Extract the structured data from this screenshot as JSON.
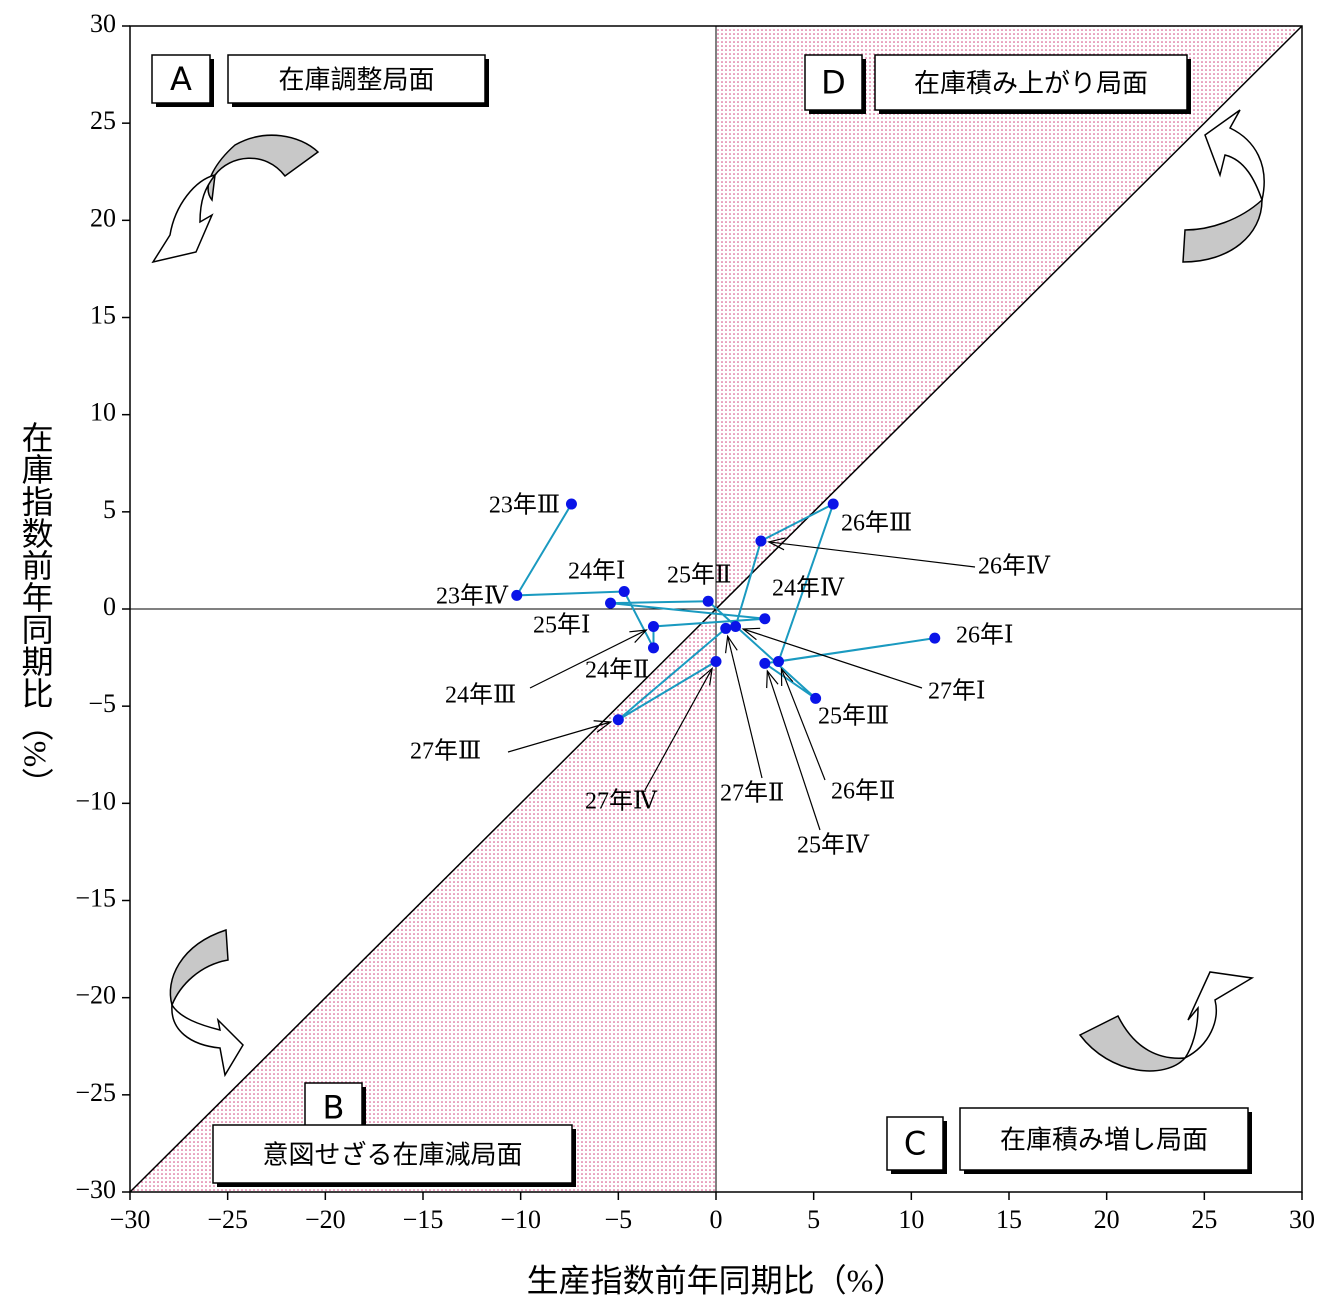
{
  "chart_data": {
    "type": "scatter-line",
    "x_label": "生産指数前年同期比（%）",
    "y_label": "在庫指数前年同期比（%）",
    "point_labels": [
      "23年Ⅲ",
      "23年Ⅳ",
      "24年Ⅰ",
      "24年Ⅱ",
      "24年Ⅲ",
      "24年Ⅳ",
      "25年Ⅰ",
      "25年Ⅱ",
      "25年Ⅲ",
      "25年Ⅳ",
      "26年Ⅰ",
      "26年Ⅱ",
      "26年Ⅲ",
      "26年Ⅳ",
      "27年Ⅰ",
      "27年Ⅱ",
      "27年Ⅲ",
      "27年Ⅳ"
    ],
    "x": [
      -7.4,
      -10.2,
      -4.7,
      -3.2,
      -3.2,
      2.5,
      -5.4,
      -0.4,
      5.1,
      2.5,
      11.2,
      3.2,
      6.0,
      2.3,
      1.0,
      0.5,
      -5.0,
      0.0
    ],
    "values": [
      5.4,
      0.7,
      0.9,
      -2.0,
      -0.9,
      -0.5,
      0.3,
      0.4,
      -4.6,
      -2.8,
      -1.5,
      -2.7,
      5.4,
      3.5,
      -0.9,
      -1.0,
      -5.7,
      -2.7
    ],
    "line_color": "#1a9ac0",
    "marker_color": "#0a14e8",
    "xlim": [
      -30,
      30
    ],
    "ylim": [
      -30,
      30
    ],
    "xticks": [
      {
        "value": -30,
        "label": "−30"
      },
      {
        "value": -25,
        "label": "−25"
      },
      {
        "value": -20,
        "label": "−20"
      },
      {
        "value": -15,
        "label": "−15"
      },
      {
        "value": -10,
        "label": "−10"
      },
      {
        "value": -5,
        "label": "−5"
      },
      0,
      5,
      10,
      15,
      20,
      25,
      30
    ],
    "yticks": [
      {
        "value": -30,
        "label": "−30"
      },
      {
        "value": -25,
        "label": "−25"
      },
      {
        "value": -20,
        "label": "−20"
      },
      {
        "value": -15,
        "label": "−15"
      },
      {
        "value": -10,
        "label": "−10"
      },
      {
        "value": -5,
        "label": "−5"
      },
      {
        "value": 0,
        "label": "0"
      },
      5,
      10,
      15,
      20,
      25,
      30
    ],
    "quadrants": [
      {
        "letter": "A",
        "label": "在庫調整局面"
      },
      {
        "letter": "D",
        "label": "在庫積み上がり局面"
      },
      {
        "letter": "B",
        "label": "意図せざる在庫減局面"
      },
      {
        "letter": "C",
        "label": "在庫積み増し局面"
      }
    ]
  }
}
